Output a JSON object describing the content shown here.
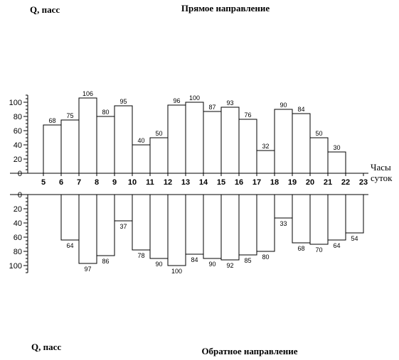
{
  "chart_data": [
    {
      "type": "bar",
      "title": "Прямое направление",
      "ylabel": "Q, пасс",
      "xlabel": "Часы суток",
      "xlabel_lines": [
        "Часы",
        "суток"
      ],
      "direction": "up",
      "ylim": [
        0,
        110
      ],
      "yticks": [
        0,
        20,
        40,
        60,
        80,
        100
      ],
      "x_ticks": [
        5,
        6,
        7,
        8,
        9,
        10,
        11,
        12,
        13,
        14,
        15,
        16,
        17,
        18,
        19,
        20,
        21,
        22,
        23
      ],
      "bars": [
        {
          "start": 5,
          "end": 6,
          "value": 68
        },
        {
          "start": 6,
          "end": 7,
          "value": 75
        },
        {
          "start": 7,
          "end": 8,
          "value": 106
        },
        {
          "start": 8,
          "end": 9,
          "value": 80
        },
        {
          "start": 9,
          "end": 10,
          "value": 95
        },
        {
          "start": 10,
          "end": 11,
          "value": 40
        },
        {
          "start": 11,
          "end": 12,
          "value": 50
        },
        {
          "start": 12,
          "end": 13,
          "value": 96
        },
        {
          "start": 13,
          "end": 14,
          "value": 100
        },
        {
          "start": 14,
          "end": 15,
          "value": 87
        },
        {
          "start": 15,
          "end": 16,
          "value": 93
        },
        {
          "start": 16,
          "end": 17,
          "value": 76
        },
        {
          "start": 17,
          "end": 18,
          "value": 32
        },
        {
          "start": 18,
          "end": 19,
          "value": 90
        },
        {
          "start": 19,
          "end": 20,
          "value": 84
        },
        {
          "start": 20,
          "end": 21,
          "value": 50
        },
        {
          "start": 21,
          "end": 22,
          "value": 30
        }
      ]
    },
    {
      "type": "bar",
      "title": "Обратное направление",
      "ylabel": "Q, пасс",
      "direction": "down",
      "ylim": [
        0,
        110
      ],
      "yticks": [
        0,
        20,
        40,
        60,
        80,
        100
      ],
      "bars": [
        {
          "start": 6,
          "end": 7,
          "value": 64
        },
        {
          "start": 7,
          "end": 8,
          "value": 97
        },
        {
          "start": 8,
          "end": 9,
          "value": 86
        },
        {
          "start": 9,
          "end": 10,
          "value": 37
        },
        {
          "start": 10,
          "end": 11,
          "value": 78
        },
        {
          "start": 11,
          "end": 12,
          "value": 90
        },
        {
          "start": 12,
          "end": 13,
          "value": 100
        },
        {
          "start": 13,
          "end": 14,
          "value": 84
        },
        {
          "start": 14,
          "end": 15,
          "value": 90
        },
        {
          "start": 15,
          "end": 16,
          "value": 92
        },
        {
          "start": 16,
          "end": 17,
          "value": 85
        },
        {
          "start": 17,
          "end": 18,
          "value": 80
        },
        {
          "start": 18,
          "end": 19,
          "value": 33
        },
        {
          "start": 19,
          "end": 20,
          "value": 68
        },
        {
          "start": 20,
          "end": 21,
          "value": 70
        },
        {
          "start": 21,
          "end": 22,
          "value": 64
        },
        {
          "start": 22,
          "end": 23,
          "value": 54
        }
      ]
    }
  ]
}
